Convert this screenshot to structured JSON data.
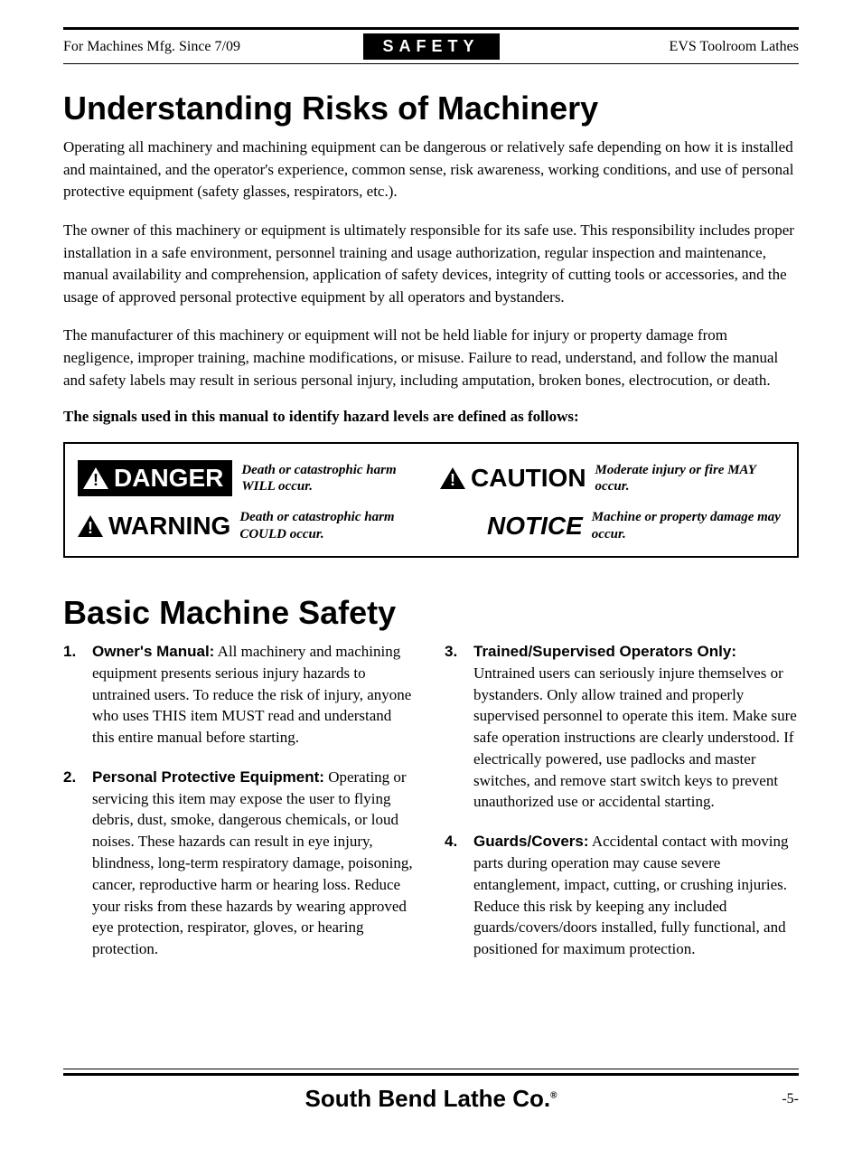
{
  "header": {
    "left": "For Machines Mfg. Since 7/09",
    "badge": "SAFETY",
    "right": "EVS Toolroom Lathes"
  },
  "section1": {
    "title": "Understanding Risks of Machinery",
    "p1": "Operating all machinery and machining equipment can be dangerous or relatively safe depending on how it is installed and maintained, and the operator's experience, common sense, risk awareness, working conditions, and use of personal protective equipment (safety glasses, respirators, etc.).",
    "p2": "The owner of this machinery or equipment is ultimately responsible for its safe use. This responsibility includes proper installation in a safe environment, personnel training and usage authorization, regular inspection and maintenance, manual availability and comprehension, application of safety devices, integrity of cutting tools or accessories, and the usage of approved personal protective equipment by all operators and bystanders.",
    "p3": "The manufacturer of this machinery or equipment will not be held liable for injury or property damage from negligence, improper training, machine modifications, or misuse. Failure to read, understand, and follow the manual and safety labels may result in serious personal injury, including amputation, broken bones, electrocution, or death.",
    "signals_intro": "The signals used in this manual to identify hazard levels are defined as follows:"
  },
  "hazards": {
    "danger": {
      "label": "DANGER",
      "desc": "Death or catastrophic harm WILL occur."
    },
    "warning": {
      "label": "WARNING",
      "desc": "Death or catastrophic harm COULD occur."
    },
    "caution": {
      "label": "CAUTION",
      "desc": "Moderate injury or fire MAY occur."
    },
    "notice": {
      "label": "NOTICE",
      "desc": "Machine or property damage may occur."
    }
  },
  "section2": {
    "title": "Basic Machine Safety",
    "items": [
      {
        "num": "1.",
        "title": "Owner's Manual:",
        "body": " All machinery and machining equipment presents serious injury hazards to untrained users. To reduce the risk of injury, anyone who uses THIS item MUST read and understand this entire manual before starting."
      },
      {
        "num": "2.",
        "title": "Personal Protective Equipment:",
        "body": " Operating or servicing this item may expose the user to flying debris, dust, smoke, dangerous chemicals, or loud noises. These hazards can result in eye injury, blindness, long-term respiratory damage, poisoning, cancer, reproductive harm or hearing loss. Reduce your risks from these hazards by wearing approved eye protection, respirator, gloves, or hearing protection."
      },
      {
        "num": "3.",
        "title": "Trained/Supervised Operators Only:",
        "body": " Untrained users can seriously injure themselves or bystanders. Only allow trained and properly supervised personnel to operate this item. Make sure safe operation instructions are clearly understood. If electrically powered, use padlocks and master switches, and remove start switch keys to prevent unauthorized use or accidental starting."
      },
      {
        "num": "4.",
        "title": "Guards/Covers:",
        "body": " Accidental contact with moving parts during operation may cause severe entanglement, impact, cutting, or crushing injuries. Reduce this risk by keeping any included guards/covers/doors installed, fully functional, and positioned for maximum protection."
      }
    ]
  },
  "footer": {
    "brand": "South Bend Lathe Co.",
    "page": "-5-"
  }
}
